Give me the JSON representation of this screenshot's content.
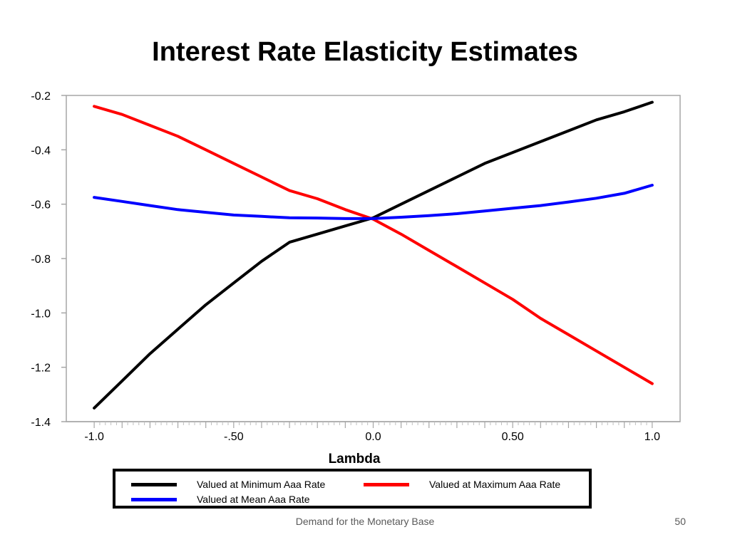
{
  "slide": {
    "title": "Interest Rate Elasticity Estimates",
    "footer": "Demand for the Monetary Base",
    "page_number": "50"
  },
  "chart_data": {
    "type": "line",
    "title": "",
    "xlabel": "Lambda",
    "ylabel": "",
    "xlim": [
      -1.1,
      1.1
    ],
    "ylim": [
      -1.4,
      -0.2
    ],
    "x_ticks": [
      {
        "value": -1.0,
        "label": "-1.0"
      },
      {
        "value": -0.5,
        "label": "-.50"
      },
      {
        "value": 0.0,
        "label": "0.0"
      },
      {
        "value": 0.5,
        "label": "0.50"
      },
      {
        "value": 1.0,
        "label": "1.0"
      }
    ],
    "y_ticks": [
      {
        "value": -0.2,
        "label": "-0.2"
      },
      {
        "value": -0.4,
        "label": "-0.4"
      },
      {
        "value": -0.6,
        "label": "-0.6"
      },
      {
        "value": -0.8,
        "label": "-0.8"
      },
      {
        "value": -1.0,
        "label": "-1.0"
      },
      {
        "value": -1.2,
        "label": "-1.2"
      },
      {
        "value": -1.4,
        "label": "-1.4"
      }
    ],
    "x": [
      -1.0,
      -0.9,
      -0.8,
      -0.7,
      -0.6,
      -0.5,
      -0.4,
      -0.3,
      -0.2,
      -0.1,
      0.0,
      0.1,
      0.2,
      0.3,
      0.4,
      0.5,
      0.6,
      0.7,
      0.8,
      0.9,
      1.0
    ],
    "series": [
      {
        "name": "Valued at Minimum Aaa Rate",
        "color": "#000000",
        "values": [
          -1.35,
          -1.25,
          -1.15,
          -1.06,
          -0.97,
          -0.89,
          -0.81,
          -0.74,
          -0.71,
          -0.68,
          -0.65,
          -0.6,
          -0.55,
          -0.5,
          -0.45,
          -0.41,
          -0.37,
          -0.33,
          -0.29,
          -0.26,
          -0.225
        ]
      },
      {
        "name": "Valued at Maximum Aaa Rate",
        "color": "#ff0000",
        "values": [
          -0.24,
          -0.27,
          -0.31,
          -0.35,
          -0.4,
          -0.45,
          -0.5,
          -0.55,
          -0.58,
          -0.62,
          -0.655,
          -0.71,
          -0.77,
          -0.83,
          -0.89,
          -0.95,
          -1.02,
          -1.08,
          -1.14,
          -1.2,
          -1.26
        ]
      },
      {
        "name": "Valued at Mean Aaa Rate",
        "color": "#0000ff",
        "values": [
          -0.575,
          -0.59,
          -0.605,
          -0.62,
          -0.63,
          -0.64,
          -0.645,
          -0.65,
          -0.651,
          -0.653,
          -0.653,
          -0.648,
          -0.642,
          -0.635,
          -0.625,
          -0.615,
          -0.605,
          -0.592,
          -0.578,
          -0.56,
          -0.53
        ]
      }
    ],
    "grid": false,
    "legend_position": "bottom"
  }
}
